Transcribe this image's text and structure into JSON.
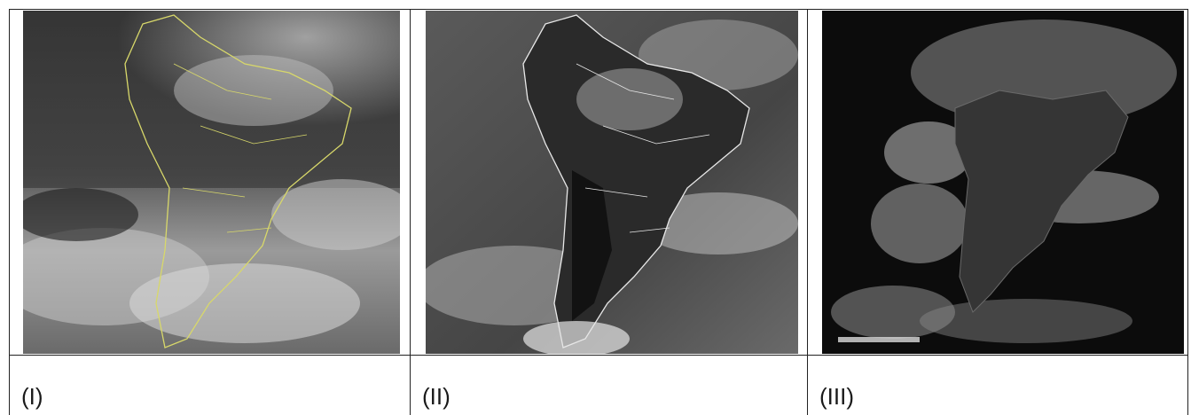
{
  "panels": [
    {
      "caption": "(I)",
      "description_icon": "water-vapor-satellite-image",
      "tint": "#d8d86a"
    },
    {
      "caption": "(II)",
      "description_icon": "infrared-satellite-image",
      "tint": "#e8e8e8"
    },
    {
      "caption": "(III)",
      "description_icon": "visible-satellite-image",
      "tint": "#9a9a9a"
    }
  ]
}
